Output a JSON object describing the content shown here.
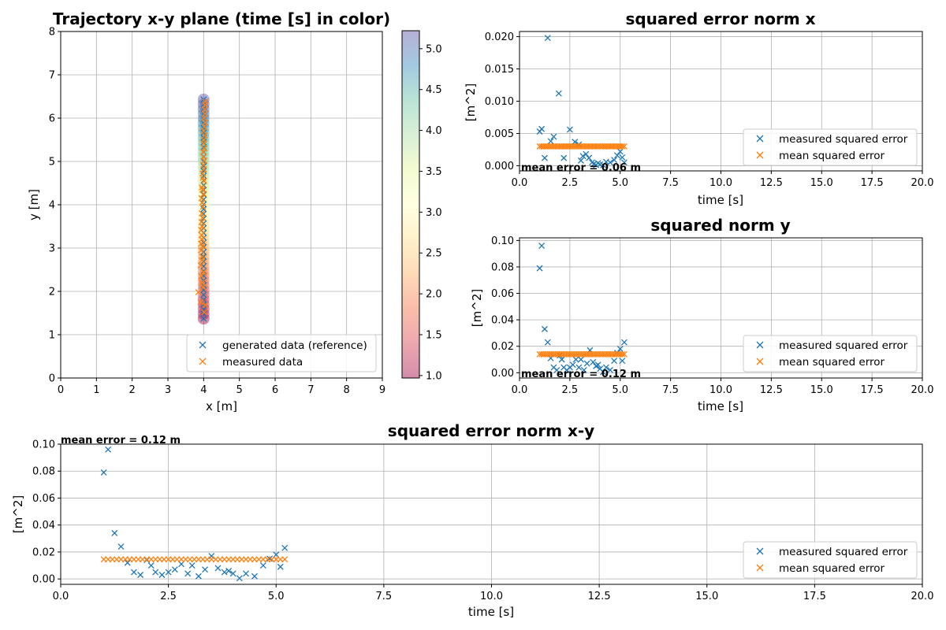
{
  "colors": {
    "measured_error": "#1f77b4",
    "mean_error": "#ff7f0e",
    "reference": "#1f77b4",
    "measured": "#ff7f0e"
  },
  "chart_data": [
    {
      "id": "xy",
      "type": "scatter",
      "title": "Trajectory x-y plane  (time [s] in color)",
      "xlabel": "x [m]",
      "ylabel": "y [m]",
      "xlim": [
        0,
        9
      ],
      "ylim": [
        0,
        8
      ],
      "xticks": [
        0,
        1,
        2,
        3,
        4,
        5,
        6,
        7,
        8,
        9
      ],
      "yticks": [
        0,
        1,
        2,
        3,
        4,
        5,
        6,
        7,
        8
      ],
      "grid": true,
      "legend_position": "lower-right",
      "colorbar": {
        "ticks": [
          "1.0",
          "1.5",
          "2.0",
          "2.5",
          "3.0",
          "3.5",
          "4.0",
          "4.5",
          "5.0"
        ],
        "range": [
          0.97,
          5.22
        ],
        "colormap": "Spectral"
      },
      "circles": {
        "t_start": 1.0,
        "t_end": 5.2,
        "x": 4.0,
        "y_start": 1.37,
        "y_end": 6.43,
        "count": 47
      },
      "series": [
        {
          "name": "generated data (reference)",
          "marker": "x",
          "x": [
            4.0,
            4.0,
            4.0,
            4.0,
            4.0,
            4.0,
            4.0,
            4.0,
            4.0,
            4.0,
            4.0,
            4.0,
            4.0,
            4.0,
            4.0,
            4.0,
            4.0,
            4.0,
            4.0,
            4.0,
            4.0,
            4.0,
            4.0,
            4.0,
            4.0,
            4.0,
            4.0,
            4.0,
            4.0,
            4.0,
            4.0,
            4.0,
            4.0,
            4.0,
            4.0,
            4.0,
            4.0,
            4.0,
            4.0,
            4.0,
            4.0,
            4.0,
            4.0,
            4.0,
            4.0,
            4.0,
            4.0
          ],
          "y": [
            1.37,
            1.48,
            1.59,
            1.7,
            1.81,
            1.92,
            2.03,
            2.14,
            2.25,
            2.36,
            2.47,
            2.58,
            2.69,
            2.8,
            2.91,
            3.02,
            3.13,
            3.24,
            3.35,
            3.46,
            3.57,
            3.68,
            3.79,
            3.9,
            4.01,
            4.12,
            4.23,
            4.34,
            4.45,
            4.56,
            4.67,
            4.78,
            4.89,
            5.0,
            5.11,
            5.22,
            5.33,
            5.44,
            5.55,
            5.66,
            5.77,
            5.88,
            5.99,
            6.1,
            6.21,
            6.32,
            6.43
          ]
        },
        {
          "name": "measured data",
          "marker": "x",
          "x": [
            4.02,
            4.05,
            3.92,
            3.85,
            3.98,
            3.95,
            3.93,
            4.0,
            3.92,
            3.95,
            3.96,
            3.93,
            3.98,
            3.93,
            3.95,
            3.94,
            3.93,
            3.96,
            3.94,
            3.97,
            3.95,
            3.98,
            3.96,
            3.94,
            4.0,
            3.97,
            3.95,
            4.01,
            3.98,
            3.97,
            4.01,
            3.99,
            4.02,
            4.0,
            3.99,
            4.02,
            4.0,
            4.01,
            4.03,
            4.0,
            4.02,
            4.04,
            4.01,
            4.03,
            4.02,
            4.04,
            4.05
          ],
          "y": [
            1.52,
            1.68,
            1.75,
            1.98,
            2.1,
            2.2,
            2.35,
            2.45,
            2.6,
            2.72,
            2.8,
            2.95,
            3.05,
            3.1,
            3.2,
            3.3,
            3.42,
            3.5,
            3.6,
            3.7,
            3.8,
            3.95,
            4.05,
            4.15,
            4.25,
            4.35,
            4.4,
            4.55,
            4.62,
            4.72,
            4.82,
            4.92,
            5.02,
            5.1,
            5.22,
            5.3,
            5.42,
            5.5,
            5.6,
            5.7,
            5.8,
            5.9,
            6.0,
            6.1,
            6.2,
            6.3,
            6.38
          ]
        }
      ]
    },
    {
      "id": "ex",
      "type": "scatter",
      "title": "squared error norm  x",
      "xlabel": "time [s]",
      "ylabel": "[m^2]",
      "xlim": [
        0,
        20
      ],
      "ylim": [
        -0.0008,
        0.0208
      ],
      "xticks": [
        0,
        2.5,
        5,
        7.5,
        10,
        12.5,
        15,
        17.5,
        20
      ],
      "xtick_labels": [
        "0.0",
        "2.5",
        "5.0",
        "7.5",
        "10.0",
        "12.5",
        "15.0",
        "17.5",
        "20.0"
      ],
      "yticks": [
        0,
        0.005,
        0.01,
        0.015,
        0.02
      ],
      "ytick_labels": [
        "0.000",
        "0.005",
        "0.010",
        "0.015",
        "0.020"
      ],
      "grid": true,
      "legend_position": "lower-right",
      "annotation": "mean error = 0.06 m",
      "series": [
        {
          "name": "measured squared error",
          "marker": "x",
          "x": [
            1.0,
            1.1,
            1.25,
            1.4,
            1.55,
            1.7,
            1.95,
            2.2,
            2.5,
            2.75,
            2.95,
            3.05,
            3.15,
            3.3,
            3.45,
            3.6,
            3.7,
            3.8,
            3.9,
            4.0,
            4.15,
            4.3,
            4.5,
            4.7,
            4.85,
            5.0,
            5.1,
            5.2
          ],
          "y": [
            0.0053,
            0.0057,
            0.0012,
            0.0198,
            0.0038,
            0.0045,
            0.0112,
            0.0012,
            0.0056,
            0.0037,
            0.0033,
            0.0008,
            0.0015,
            0.0018,
            0.0012,
            0.0005,
            0.0003,
            0.0001,
            0.0004,
            0.0002,
            0.0001,
            0.0006,
            0.0005,
            0.0009,
            0.0016,
            0.0022,
            0.0013,
            0.0005
          ]
        },
        {
          "name": "mean squared error",
          "marker": "x",
          "x": [
            1.0,
            1.1,
            1.2,
            1.3,
            1.4,
            1.5,
            1.6,
            1.7,
            1.8,
            1.9,
            2.0,
            2.1,
            2.2,
            2.3,
            2.4,
            2.5,
            2.6,
            2.7,
            2.8,
            2.9,
            3.0,
            3.1,
            3.2,
            3.3,
            3.4,
            3.5,
            3.6,
            3.7,
            3.8,
            3.9,
            4.0,
            4.1,
            4.2,
            4.3,
            4.4,
            4.5,
            4.6,
            4.7,
            4.8,
            4.9,
            5.0,
            5.1,
            5.2
          ],
          "y": [
            0.003,
            0.003,
            0.003,
            0.003,
            0.003,
            0.003,
            0.003,
            0.003,
            0.003,
            0.003,
            0.003,
            0.003,
            0.003,
            0.003,
            0.003,
            0.003,
            0.003,
            0.003,
            0.003,
            0.003,
            0.003,
            0.003,
            0.003,
            0.003,
            0.003,
            0.003,
            0.003,
            0.003,
            0.003,
            0.003,
            0.003,
            0.003,
            0.003,
            0.003,
            0.003,
            0.003,
            0.003,
            0.003,
            0.003,
            0.003,
            0.003,
            0.003,
            0.003
          ]
        }
      ]
    },
    {
      "id": "ey",
      "type": "scatter",
      "title": "squared norm  y",
      "xlabel": "time [s]",
      "ylabel": "[m^2]",
      "xlim": [
        0,
        20
      ],
      "ylim": [
        -0.004,
        0.102
      ],
      "xticks": [
        0,
        2.5,
        5,
        7.5,
        10,
        12.5,
        15,
        17.5,
        20
      ],
      "xtick_labels": [
        "0.0",
        "2.5",
        "5.0",
        "7.5",
        "10.0",
        "12.5",
        "15.0",
        "17.5",
        "20.0"
      ],
      "yticks": [
        0,
        0.02,
        0.04,
        0.06,
        0.08,
        0.1
      ],
      "ytick_labels": [
        "0.00",
        "0.02",
        "0.04",
        "0.06",
        "0.08",
        "0.10"
      ],
      "grid": true,
      "legend_position": "lower-right",
      "annotation": "mean error = 0.12 m",
      "series": [
        {
          "name": "measured squared error",
          "marker": "x",
          "x": [
            1.0,
            1.1,
            1.25,
            1.4,
            1.55,
            1.7,
            1.85,
            2.0,
            2.1,
            2.2,
            2.35,
            2.5,
            2.65,
            2.8,
            2.95,
            3.05,
            3.2,
            3.35,
            3.5,
            3.65,
            3.8,
            3.9,
            4.0,
            4.15,
            4.3,
            4.5,
            4.7,
            4.85,
            5.0,
            5.1,
            5.2
          ],
          "y": [
            0.079,
            0.096,
            0.033,
            0.023,
            0.011,
            0.004,
            0.002,
            0.013,
            0.01,
            0.004,
            0.002,
            0.004,
            0.006,
            0.01,
            0.004,
            0.01,
            0.002,
            0.007,
            0.017,
            0.008,
            0.005,
            0.006,
            0.003,
            0.0005,
            0.004,
            0.002,
            0.009,
            0.015,
            0.018,
            0.009,
            0.023
          ]
        },
        {
          "name": "mean squared error",
          "marker": "x",
          "x": [
            1.0,
            1.1,
            1.2,
            1.3,
            1.4,
            1.5,
            1.6,
            1.7,
            1.8,
            1.9,
            2.0,
            2.1,
            2.2,
            2.3,
            2.4,
            2.5,
            2.6,
            2.7,
            2.8,
            2.9,
            3.0,
            3.1,
            3.2,
            3.3,
            3.4,
            3.5,
            3.6,
            3.7,
            3.8,
            3.9,
            4.0,
            4.1,
            4.2,
            4.3,
            4.4,
            4.5,
            4.6,
            4.7,
            4.8,
            4.9,
            5.0,
            5.1,
            5.2
          ],
          "y": [
            0.014,
            0.014,
            0.014,
            0.014,
            0.014,
            0.014,
            0.014,
            0.014,
            0.014,
            0.014,
            0.014,
            0.014,
            0.014,
            0.014,
            0.014,
            0.014,
            0.014,
            0.014,
            0.014,
            0.014,
            0.014,
            0.014,
            0.014,
            0.014,
            0.014,
            0.014,
            0.014,
            0.014,
            0.014,
            0.014,
            0.014,
            0.014,
            0.014,
            0.014,
            0.014,
            0.014,
            0.014,
            0.014,
            0.014,
            0.014,
            0.014,
            0.014,
            0.014
          ]
        }
      ]
    },
    {
      "id": "exy",
      "type": "scatter",
      "title": "squared error norm  x-y",
      "xlabel": "time [s]",
      "ylabel": "[m^2]",
      "xlim": [
        0,
        20
      ],
      "ylim": [
        -0.004,
        0.1
      ],
      "xticks": [
        0,
        2.5,
        5,
        7.5,
        10,
        12.5,
        15,
        17.5,
        20
      ],
      "xtick_labels": [
        "0.0",
        "2.5",
        "5.0",
        "7.5",
        "10.0",
        "12.5",
        "15.0",
        "17.5",
        "20.0"
      ],
      "yticks": [
        0,
        0.02,
        0.04,
        0.06,
        0.08,
        0.1
      ],
      "ytick_labels": [
        "0.00",
        "0.02",
        "0.04",
        "0.06",
        "0.08",
        "0.10"
      ],
      "grid": true,
      "legend_position": "lower-right",
      "annotation": "mean error = 0.12 m",
      "series": [
        {
          "name": "measured squared error",
          "marker": "x",
          "x": [
            1.0,
            1.1,
            1.25,
            1.4,
            1.55,
            1.7,
            1.85,
            2.0,
            2.1,
            2.2,
            2.35,
            2.5,
            2.65,
            2.8,
            2.95,
            3.05,
            3.2,
            3.35,
            3.5,
            3.65,
            3.8,
            3.9,
            4.0,
            4.15,
            4.3,
            4.5,
            4.7,
            4.85,
            5.0,
            5.1,
            5.2
          ],
          "y": [
            0.079,
            0.096,
            0.034,
            0.024,
            0.012,
            0.005,
            0.003,
            0.014,
            0.01,
            0.005,
            0.003,
            0.005,
            0.007,
            0.011,
            0.004,
            0.01,
            0.002,
            0.007,
            0.017,
            0.008,
            0.005,
            0.006,
            0.004,
            0.0005,
            0.004,
            0.002,
            0.01,
            0.015,
            0.018,
            0.009,
            0.023
          ]
        },
        {
          "name": "mean squared error",
          "marker": "x",
          "x": [
            1.0,
            1.1,
            1.2,
            1.3,
            1.4,
            1.5,
            1.6,
            1.7,
            1.8,
            1.9,
            2.0,
            2.1,
            2.2,
            2.3,
            2.4,
            2.5,
            2.6,
            2.7,
            2.8,
            2.9,
            3.0,
            3.1,
            3.2,
            3.3,
            3.4,
            3.5,
            3.6,
            3.7,
            3.8,
            3.9,
            4.0,
            4.1,
            4.2,
            4.3,
            4.4,
            4.5,
            4.6,
            4.7,
            4.8,
            4.9,
            5.0,
            5.1,
            5.2
          ],
          "y": [
            0.0145,
            0.0145,
            0.0145,
            0.0145,
            0.0145,
            0.0145,
            0.0145,
            0.0145,
            0.0145,
            0.0145,
            0.0145,
            0.0145,
            0.0145,
            0.0145,
            0.0145,
            0.0145,
            0.0145,
            0.0145,
            0.0145,
            0.0145,
            0.0145,
            0.0145,
            0.0145,
            0.0145,
            0.0145,
            0.0145,
            0.0145,
            0.0145,
            0.0145,
            0.0145,
            0.0145,
            0.0145,
            0.0145,
            0.0145,
            0.0145,
            0.0145,
            0.0145,
            0.0145,
            0.0145,
            0.0145,
            0.0145,
            0.0145,
            0.0145
          ]
        }
      ]
    }
  ]
}
